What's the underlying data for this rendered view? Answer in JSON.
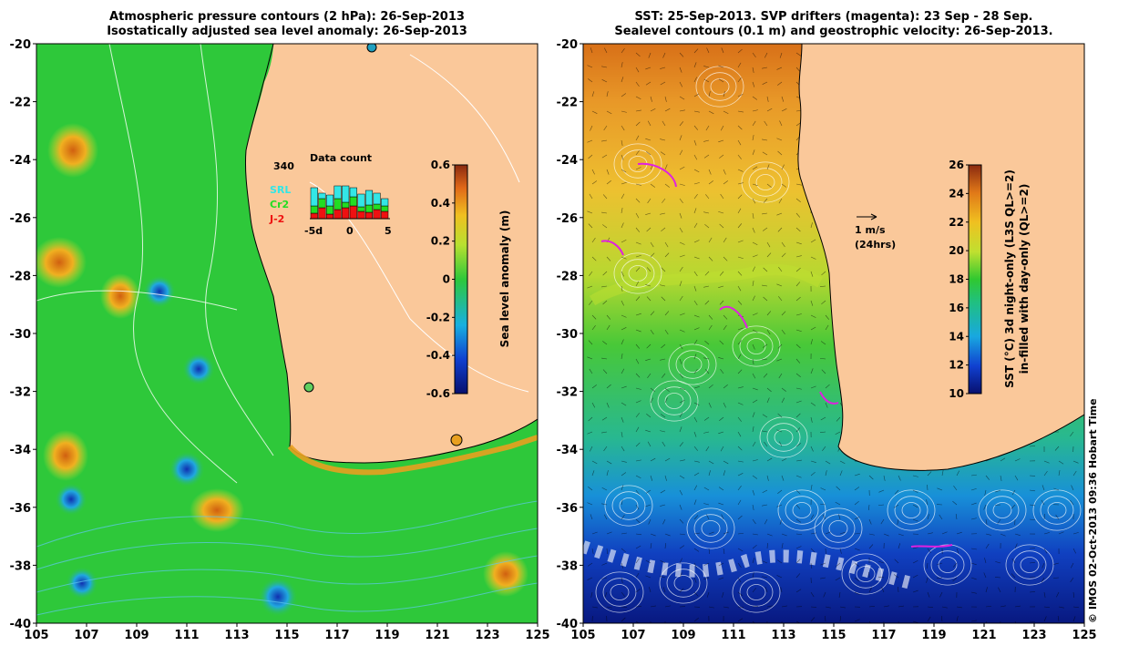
{
  "left_panel": {
    "title_line1": "Atmospheric pressure contours (2 hPa): 26-Sep-2013",
    "title_line2": "Isostatically adjusted sea level anomaly: 26-Sep-2013",
    "colorbar_label": "Sea level anomaly (m)",
    "colorbar_ticks": [
      "0.6",
      "0.4",
      "0.2",
      "0",
      "-0.2",
      "-0.4",
      "-0.6"
    ],
    "inset": {
      "title": "Data count",
      "max_label": "340",
      "sat_labels": [
        "SRL",
        "Cr2",
        "J-2"
      ],
      "sat_colors": [
        "#33e6e6",
        "#22dd22",
        "#ee1111"
      ],
      "x_ticks": [
        "-5d",
        "0",
        "5"
      ]
    }
  },
  "right_panel": {
    "title_line1": "SST: 25-Sep-2013. SVP drifters (magenta): 23 Sep - 28 Sep.",
    "title_line2": "Sealevel contours (0.1 m) and geostrophic velocity: 26-Sep-2013.",
    "scale_arrow_label1": "1 m/s",
    "scale_arrow_label2": "(24hrs)",
    "colorbar_label1": "SST (°C) 3d night-only (L3S QL>=2)",
    "colorbar_label2": "in-filled with day-only (QL>=2)",
    "colorbar_ticks": [
      "26",
      "24",
      "22",
      "20",
      "18",
      "16",
      "14",
      "12",
      "10"
    ]
  },
  "axes": {
    "x_ticks": [
      "105",
      "107",
      "109",
      "111",
      "113",
      "115",
      "117",
      "119",
      "121",
      "123",
      "125"
    ],
    "y_ticks": [
      "-20",
      "-22",
      "-24",
      "-26",
      "-28",
      "-30",
      "-32",
      "-34",
      "-36",
      "-38",
      "-40"
    ]
  },
  "credit": "© IMOS 02-Oct-2013 09:36 Hobart Time",
  "colors": {
    "land": "#fac89a",
    "sla_ocean": "#2ec83a",
    "sst_warm": "#e07818",
    "sst_cool": "#0a2aa0"
  }
}
